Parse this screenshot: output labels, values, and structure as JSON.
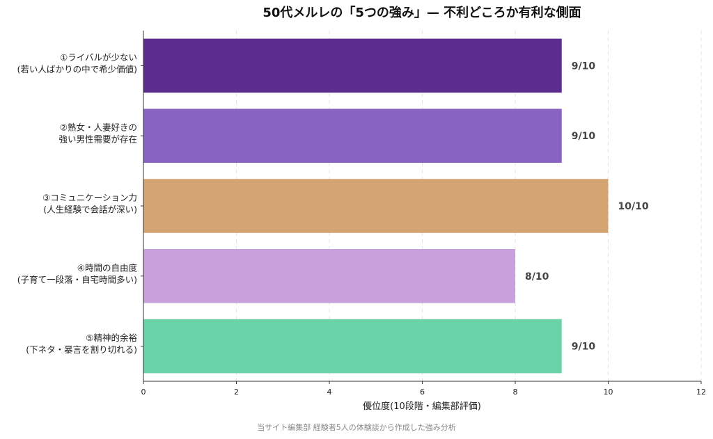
{
  "chart_data": {
    "type": "bar",
    "orientation": "horizontal",
    "title": "50代メルレの「5つの強み」— 不利どころか有利な側面",
    "xlabel": "優位度(10段階・編集部評価)",
    "ylabel": "",
    "xlim": [
      0,
      12
    ],
    "xticks": [
      0,
      2,
      4,
      6,
      8,
      10,
      12
    ],
    "grid": "vertical dashed",
    "categories": [
      [
        "①ライバルが少ない",
        "(若い人ばかりの中で希少価値)"
      ],
      [
        "②熟女・人妻好きの",
        "強い男性需要が存在"
      ],
      [
        "③コミュニケーション力",
        "(人生経験で会話が深い)"
      ],
      [
        "④時間の自由度",
        "(子育て一段落・自宅時間多い)"
      ],
      [
        "⑤精神的余裕",
        "(下ネタ・暴言を割り切れる)"
      ]
    ],
    "values": [
      9,
      9,
      10,
      8,
      9
    ],
    "value_labels": [
      "9/10",
      "9/10",
      "10/10",
      "8/10",
      "9/10"
    ],
    "colors": [
      "#5c2d8c",
      "#8a62c2",
      "#d4a472",
      "#c9a0dc",
      "#6bd1a7"
    ]
  },
  "footer": "当サイト編集部 経験者5人の体験談から作成した強み分析"
}
